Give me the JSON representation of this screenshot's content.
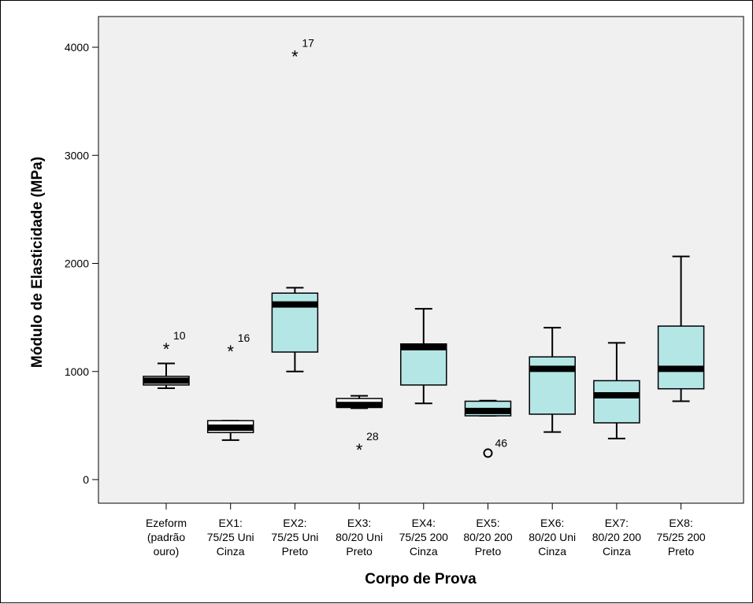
{
  "chart_data": {
    "type": "boxplot",
    "xlabel": "Corpo de Prova",
    "ylabel": "Módulo de Elasticidade (MPa)",
    "ylim": [
      -220,
      4400
    ],
    "yticks": [
      0,
      1000,
      2000,
      3000,
      4000
    ],
    "grid": false,
    "colors": {
      "plot_bg": "#f0f0f0",
      "box_fill": "#b4e6e6",
      "line": "#000000"
    },
    "categories": [
      {
        "label": [
          "Ezeform",
          "(padrão",
          "ouro)"
        ],
        "min": 845,
        "q1": 875,
        "median": 915,
        "q3": 955,
        "max": 1075,
        "box_fill": "#ffffff",
        "outliers": [
          {
            "value": 1240,
            "label": "10",
            "marker": "star"
          }
        ]
      },
      {
        "label": [
          "EX1:",
          "75/25 Uni",
          "Cinza"
        ],
        "min": 365,
        "q1": 435,
        "median": 480,
        "q3": 545,
        "max": 545,
        "box_fill": "#ffffff",
        "outliers": [
          {
            "value": 1215,
            "label": "16",
            "marker": "star"
          }
        ]
      },
      {
        "label": [
          "EX2:",
          "75/25 Uni",
          "Preto"
        ],
        "min": 1000,
        "q1": 1180,
        "median": 1620,
        "q3": 1725,
        "max": 1775,
        "outliers": [
          {
            "value": 3945,
            "label": "17",
            "marker": "star"
          }
        ]
      },
      {
        "label": [
          "EX3:",
          "80/20 Uni",
          "Preto"
        ],
        "min": 660,
        "q1": 670,
        "median": 690,
        "q3": 750,
        "max": 775,
        "box_fill": "#ffffff",
        "outliers": [
          {
            "value": 305,
            "label": "28",
            "marker": "star"
          }
        ]
      },
      {
        "label": [
          "EX4:",
          "75/25 200",
          "Cinza"
        ],
        "min": 705,
        "q1": 875,
        "median": 1225,
        "q3": 1255,
        "max": 1580,
        "outliers": []
      },
      {
        "label": [
          "EX5:",
          "80/20 200",
          "Preto"
        ],
        "min": 590,
        "q1": 590,
        "median": 635,
        "q3": 725,
        "max": 730,
        "outliers": [
          {
            "value": 245,
            "label": "46",
            "marker": "circle"
          }
        ]
      },
      {
        "label": [
          "EX6:",
          "80/20 Uni",
          "Cinza"
        ],
        "min": 440,
        "q1": 605,
        "median": 1025,
        "q3": 1135,
        "max": 1405,
        "outliers": []
      },
      {
        "label": [
          "EX7:",
          "80/20 200",
          "Cinza"
        ],
        "min": 380,
        "q1": 525,
        "median": 780,
        "q3": 915,
        "max": 1265,
        "outliers": []
      },
      {
        "label": [
          "EX8:",
          "75/25 200",
          "Preto"
        ],
        "min": 725,
        "q1": 840,
        "median": 1025,
        "q3": 1420,
        "max": 2065,
        "outliers": []
      }
    ]
  }
}
